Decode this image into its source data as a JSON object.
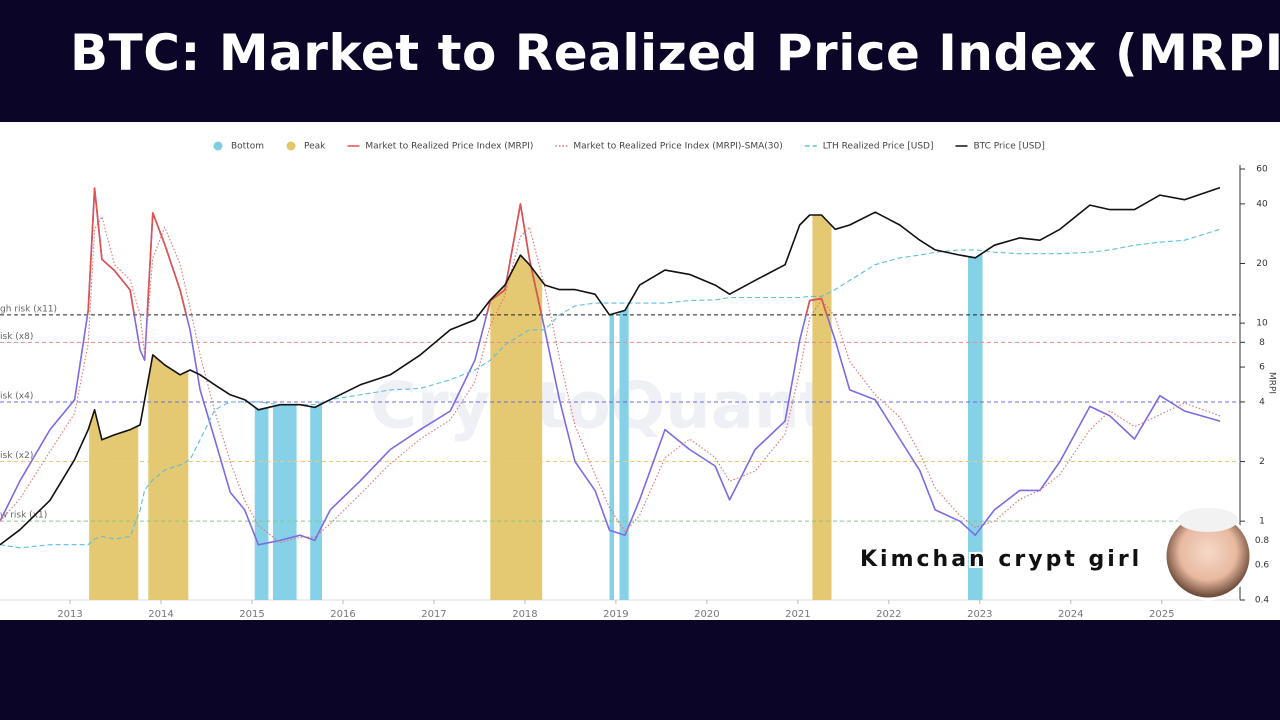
{
  "chart_data": {
    "type": "line",
    "title": "BTC: Market to Realized Price Index (MRPI)",
    "watermark": "CryptoQuant",
    "overlay_text": "Kimchan crypt girl",
    "y2_label": "MRPI",
    "log_scale": true,
    "xlim": [
      2012.23,
      2025.86
    ],
    "xticks": [
      2013,
      2014,
      2015,
      2016,
      2017,
      2018,
      2019,
      2020,
      2021,
      2022,
      2023,
      2024,
      2025
    ],
    "ylim": [
      3.2,
      195000
    ],
    "y2lim": [
      0.4,
      60
    ],
    "y2ticks": [
      0.4,
      0.6,
      0.8,
      1,
      2,
      4,
      6,
      8,
      10,
      20,
      40,
      60
    ],
    "bands": [
      {
        "name": "Bottom",
        "color": "#7ecfe6",
        "ranges": [
          [
            2015.03,
            2015.18
          ],
          [
            2015.23,
            2015.49
          ],
          [
            2015.64,
            2015.77
          ],
          [
            2018.93,
            2018.98
          ],
          [
            2019.04,
            2019.14
          ],
          [
            2022.87,
            2023.03
          ]
        ]
      },
      {
        "name": "Peak",
        "color": "#e3c56a",
        "ranges": [
          [
            2013.21,
            2013.75
          ],
          [
            2013.86,
            2014.3
          ],
          [
            2017.62,
            2018.19
          ],
          [
            2021.16,
            2021.37
          ]
        ]
      }
    ],
    "reference_lines": [
      {
        "label": "gh risk (x11)",
        "value": 11,
        "color": "#222222"
      },
      {
        "label": "isk (x8)",
        "value": 8,
        "color": "#e88a8a"
      },
      {
        "label": "isk (x4)",
        "value": 4,
        "color": "#6c6cd8"
      },
      {
        "label": "isk (x2)",
        "value": 2,
        "color": "#f0c878"
      },
      {
        "label": "w risk (x1)",
        "value": 1,
        "color": "#86c886"
      }
    ],
    "x": [
      2012.23,
      2012.45,
      2012.78,
      2013.05,
      2013.2,
      2013.27,
      2013.35,
      2013.49,
      2013.66,
      2013.77,
      2013.82,
      2013.91,
      2014.04,
      2014.21,
      2014.32,
      2014.43,
      2014.59,
      2014.76,
      2014.92,
      2015.07,
      2015.31,
      2015.53,
      2015.69,
      2015.86,
      2016.19,
      2016.52,
      2016.85,
      2017.18,
      2017.45,
      2017.62,
      2017.78,
      2017.95,
      2018.05,
      2018.22,
      2018.38,
      2018.55,
      2018.77,
      2018.93,
      2019.1,
      2019.26,
      2019.54,
      2019.81,
      2020.09,
      2020.25,
      2020.53,
      2020.86,
      2021.02,
      2021.13,
      2021.26,
      2021.41,
      2021.57,
      2021.85,
      2022.12,
      2022.34,
      2022.51,
      2022.78,
      2022.95,
      2023.16,
      2023.44,
      2023.66,
      2023.88,
      2024.21,
      2024.43,
      2024.7,
      2024.98,
      2025.25,
      2025.64
    ],
    "series": [
      {
        "name": "Market to Realized Price Index (MRPI)",
        "axis": "y2",
        "style": "solid",
        "color": "#e0524a",
        "low_color": "#7c6ae6",
        "values": [
          1.0,
          1.6,
          2.9,
          4.1,
          11.6,
          48,
          21,
          18.4,
          14.7,
          7.3,
          6.5,
          36,
          25,
          14.7,
          9.2,
          4.6,
          2.6,
          1.4,
          1.14,
          0.76,
          0.8,
          0.85,
          0.8,
          1.14,
          1.6,
          2.3,
          2.9,
          3.6,
          6.5,
          13,
          14.7,
          40,
          21,
          9.2,
          4.1,
          2.0,
          1.43,
          0.9,
          0.85,
          1.28,
          2.9,
          2.3,
          1.9,
          1.28,
          2.3,
          3.2,
          8.2,
          13,
          13.3,
          8.2,
          4.6,
          4.1,
          2.6,
          1.8,
          1.14,
          1.0,
          0.85,
          1.14,
          1.43,
          1.43,
          2.0,
          3.8,
          3.4,
          2.6,
          4.3,
          3.6,
          3.2
        ]
      },
      {
        "name": "Market to Realized Price Index (MRPI)-SMA(30)",
        "axis": "y2",
        "style": "dotted",
        "color": "#e87070",
        "values": [
          1.0,
          1.3,
          2.25,
          3.5,
          7.85,
          29.8,
          34.5,
          19.7,
          16.55,
          11.0,
          6.9,
          21.25,
          30.5,
          19.85,
          11.95,
          6.9,
          3.6,
          2.0,
          1.27,
          0.95,
          0.78,
          0.83,
          0.83,
          0.97,
          1.37,
          1.95,
          2.6,
          3.25,
          5.05,
          9.75,
          13.85,
          27.35,
          30.5,
          15.1,
          6.65,
          3.05,
          1.72,
          1.17,
          0.88,
          1.07,
          2.09,
          2.6,
          2.1,
          1.59,
          1.79,
          2.75,
          5.7,
          10.6,
          13.15,
          10.75,
          6.4,
          4.35,
          3.35,
          2.2,
          1.47,
          1.07,
          0.93,
          1.0,
          1.29,
          1.43,
          1.72,
          2.9,
          3.6,
          3.0,
          3.45,
          3.95,
          3.4
        ]
      },
      {
        "name": "LTH Realized Price [USD]",
        "axis": "y",
        "style": "dashed",
        "color": "#5bbfe0",
        "values": [
          13,
          12,
          13,
          13,
          13,
          15,
          16,
          15,
          16,
          31,
          52,
          67,
          86,
          98,
          112,
          185,
          396,
          483,
          483,
          483,
          450,
          450,
          450,
          511,
          578,
          655,
          680,
          845,
          1085,
          1390,
          2040,
          2620,
          3000,
          3000,
          4380,
          5500,
          5900,
          5900,
          5900,
          5900,
          5900,
          6300,
          6400,
          6800,
          6800,
          6800,
          6800,
          7000,
          7000,
          8300,
          10500,
          15600,
          18600,
          19900,
          21400,
          22700,
          22700,
          21400,
          20600,
          20600,
          20600,
          21400,
          22700,
          25600,
          27600,
          29000,
          38300
        ]
      },
      {
        "name": "BTC Price [USD]",
        "axis": "y",
        "style": "solid",
        "color": "#111111",
        "values": [
          13,
          19,
          40,
          112,
          239,
          396,
          185,
          210,
          239,
          270,
          511,
          1590,
          1235,
          960,
          1085,
          960,
          745,
          578,
          511,
          396,
          450,
          450,
          420,
          511,
          745,
          960,
          1590,
          3000,
          3860,
          6400,
          9300,
          19900,
          15600,
          9300,
          8300,
          8300,
          7400,
          4380,
          4900,
          9300,
          13600,
          12200,
          9300,
          7400,
          10500,
          15600,
          42700,
          55000,
          55000,
          38300,
          42700,
          59000,
          42700,
          29000,
          22700,
          19900,
          18600,
          25600,
          30800,
          29000,
          38300,
          70600,
          63000,
          63000,
          91000,
          81000,
          110000
        ]
      }
    ]
  }
}
